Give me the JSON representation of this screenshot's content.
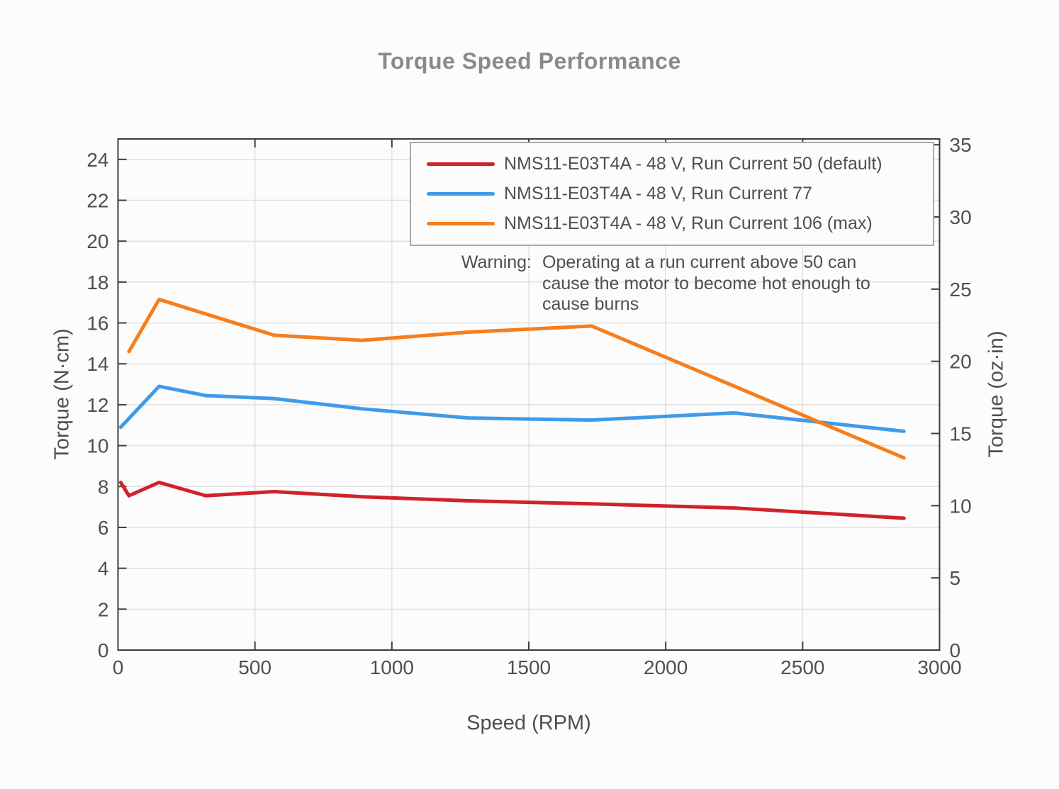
{
  "figure": {
    "title": "Torque Speed Performance"
  },
  "chart_data": {
    "type": "line",
    "title": "Torque Speed Performance",
    "xlabel": "Speed (RPM)",
    "ylabel_left": "Torque (N·cm)",
    "ylabel_right": "Torque (oz·in)",
    "xlim": [
      0,
      3000
    ],
    "ylim_left": [
      0,
      25
    ],
    "ylim_right_oz": [
      0,
      35
    ],
    "oz_per_ncm": 1.41612,
    "grid": true,
    "x_ticks": [
      0,
      500,
      1000,
      1500,
      2000,
      2500,
      3000
    ],
    "y_ticks_left": [
      0,
      2,
      4,
      6,
      8,
      10,
      12,
      14,
      16,
      18,
      20,
      22,
      24
    ],
    "y_ticks_right": [
      0,
      5,
      10,
      15,
      20,
      25,
      30,
      35
    ],
    "legend_position": "upper right, boxed",
    "series": [
      {
        "name": "NMS11-E03T4A - 48 V, Run Current 50 (default)",
        "color": "#d02329",
        "points": [
          [
            10,
            8.2
          ],
          [
            40,
            7.55
          ],
          [
            150,
            8.2
          ],
          [
            320,
            7.55
          ],
          [
            570,
            7.75
          ],
          [
            890,
            7.5
          ],
          [
            1280,
            7.3
          ],
          [
            1730,
            7.15
          ],
          [
            2250,
            6.95
          ],
          [
            2870,
            6.45
          ]
        ]
      },
      {
        "name": "NMS11-E03T4A - 48 V, Run Current 77",
        "color": "#3f9bea",
        "points": [
          [
            10,
            10.9
          ],
          [
            150,
            12.9
          ],
          [
            320,
            12.45
          ],
          [
            570,
            12.3
          ],
          [
            890,
            11.8
          ],
          [
            1280,
            11.35
          ],
          [
            1730,
            11.25
          ],
          [
            2250,
            11.6
          ],
          [
            2870,
            10.7
          ]
        ]
      },
      {
        "name": "NMS11-E03T4A - 48 V, Run Current 106 (max)",
        "color": "#f67e1c",
        "points": [
          [
            40,
            14.6
          ],
          [
            150,
            17.15
          ],
          [
            570,
            15.4
          ],
          [
            890,
            15.15
          ],
          [
            1280,
            15.55
          ],
          [
            1730,
            15.85
          ],
          [
            2870,
            9.4
          ]
        ]
      }
    ],
    "annotation": {
      "label": "Warning:",
      "text": "Operating at a run current above 50 can cause the motor to become hot enough to cause burns"
    },
    "style": {
      "grid_color": "#e0e0e0",
      "spine_color": "#3d3d3d",
      "tick_label_color": "#4f4f4f",
      "title_color": "#8a8a8a",
      "background": "#fcfcfc"
    }
  }
}
